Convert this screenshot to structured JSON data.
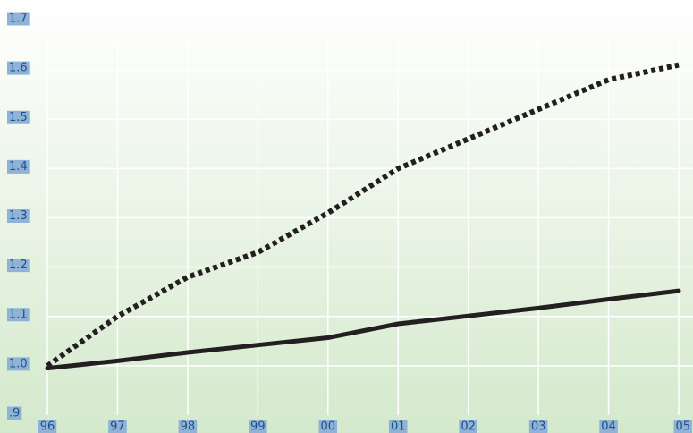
{
  "chart_data": {
    "type": "line",
    "title": "",
    "xlabel": "",
    "ylabel": "",
    "categories": [
      "96",
      "97",
      "98",
      "99",
      "00",
      "01",
      "02",
      "03",
      "04",
      "05"
    ],
    "y_tick_labels": [
      ".9",
      "1.0",
      "1.1",
      "1.2",
      "1.3",
      "1.4",
      "1.5",
      "1.6",
      "1.7"
    ],
    "y_ticks": [
      0.9,
      1.0,
      1.1,
      1.2,
      1.3,
      1.4,
      1.5,
      1.6,
      1.7
    ],
    "ylim": [
      0.9,
      1.7
    ],
    "grid": true,
    "legend": "none",
    "series": [
      {
        "style": "dotted",
        "color": "#231f20",
        "values": [
          1.0,
          1.1,
          1.18,
          1.23,
          1.31,
          1.4,
          1.46,
          1.52,
          1.58,
          1.61
        ]
      },
      {
        "style": "solid",
        "color": "#231f20",
        "values": [
          0.995,
          1.01,
          1.027,
          1.042,
          1.057,
          1.085,
          1.101,
          1.117,
          1.135,
          1.152
        ]
      }
    ],
    "colors": {
      "background_top": "#ffffff",
      "background_bottom": "#d4e9cc",
      "grid": "#ffffff",
      "tick_label_bg": "#8fb3d6",
      "tick_label_text": "#1f4f8a"
    }
  }
}
